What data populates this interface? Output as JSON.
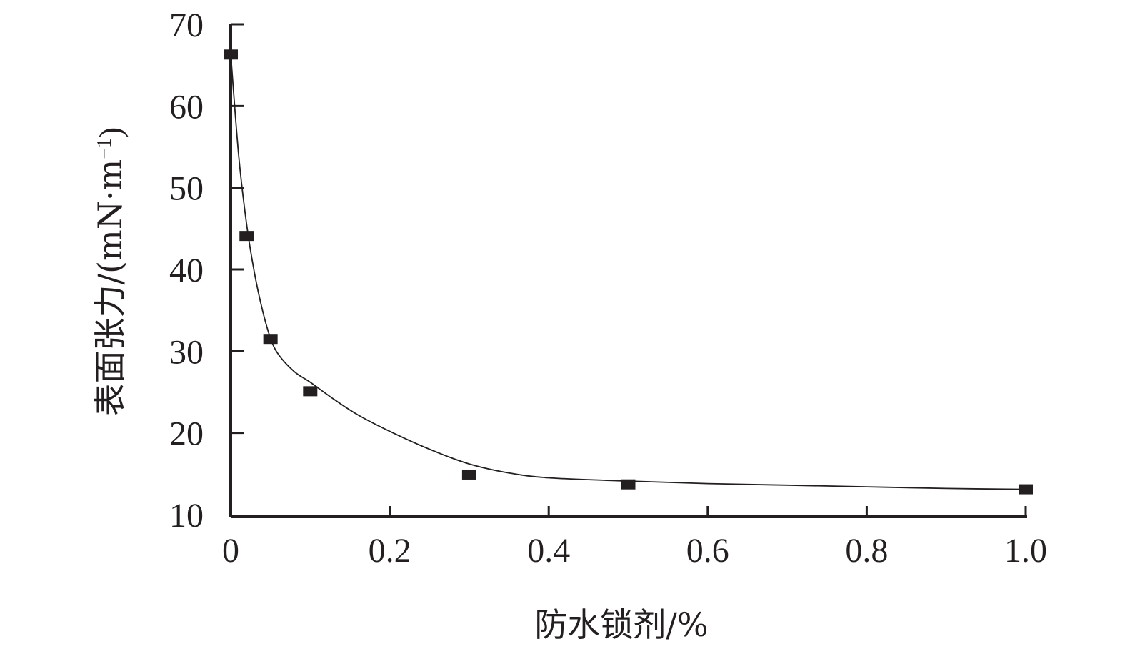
{
  "chart_data": {
    "type": "scatter",
    "xlabel": "防水锁剂/%",
    "ylabel": {
      "main": "表面张力/(mN·m",
      "sup": "−1",
      "close": ")"
    },
    "xlim": [
      0,
      1.0
    ],
    "ylim": [
      10,
      70
    ],
    "xticks": [
      0,
      0.2,
      0.4,
      0.6,
      0.8,
      1.0
    ],
    "xtick_labels": [
      "0",
      "0.2",
      "0.4",
      "0.6",
      "0.8",
      "1.0"
    ],
    "yticks": [
      10,
      20,
      30,
      40,
      50,
      60,
      70
    ],
    "ytick_labels": [
      "10",
      "20",
      "30",
      "40",
      "50",
      "60",
      "70"
    ],
    "grid": false,
    "series": [
      {
        "marker": "square",
        "x": [
          0,
          0.02,
          0.05,
          0.1,
          0.3,
          0.5,
          1.0
        ],
        "y": [
          66.3,
          44.1,
          31.5,
          25.1,
          14.9,
          13.7,
          13.1
        ]
      }
    ],
    "fit_curve": {
      "x": [
        0,
        0.01,
        0.02,
        0.03,
        0.04,
        0.05,
        0.06,
        0.08,
        0.1,
        0.13,
        0.16,
        0.2,
        0.25,
        0.3,
        0.35,
        0.4,
        0.5,
        0.6,
        0.7,
        0.8,
        0.9,
        1.0
      ],
      "y": [
        66.3,
        54.0,
        45.5,
        39.5,
        35.0,
        31.6,
        29.6,
        27.5,
        26.2,
        24.1,
        22.2,
        20.2,
        18.0,
        16.2,
        15.1,
        14.5,
        14.1,
        13.8,
        13.6,
        13.4,
        13.2,
        13.1
      ]
    },
    "colors": {
      "ink": "#231f20"
    }
  }
}
